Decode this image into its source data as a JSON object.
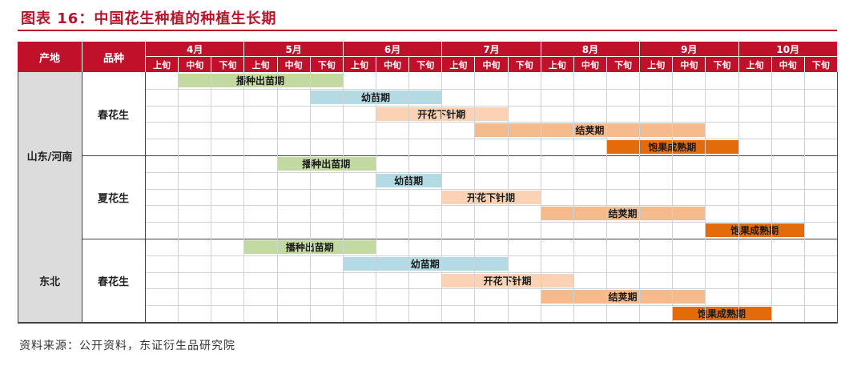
{
  "title": "图表 16：中国花生种植的种植生长期",
  "source": "资料来源：公开资料，东证衍生品研究院",
  "header": {
    "origin": "产地",
    "variety": "品种",
    "months": [
      "4月",
      "5月",
      "6月",
      "7月",
      "8月",
      "9月",
      "10月"
    ],
    "dekads": [
      "上旬",
      "中旬",
      "下旬"
    ]
  },
  "colors": {
    "header": "#c0102a",
    "title": "#b5142a",
    "region_cell": "#dcdcdc",
    "stage_sowing": "#c2d9a2",
    "stage_seedling": "#b4dbe4",
    "stage_flowering": "#fbd3b4",
    "stage_podding": "#f6bb8c",
    "stage_maturing": "#e36c0a"
  },
  "regions": [
    {
      "name": "山东/河南",
      "crops": [
        {
          "name": "春花生",
          "stages": [
            {
              "label": "播种出苗期",
              "color": "stage_sowing",
              "start": 1,
              "end": 6
            },
            {
              "label": "幼苗期",
              "color": "stage_seedling",
              "start": 5,
              "end": 9
            },
            {
              "label": "开花下针期",
              "color": "stage_flowering",
              "start": 7,
              "end": 11
            },
            {
              "label": "结荚期",
              "color": "stage_podding",
              "start": 10,
              "end": 17
            },
            {
              "label": "饱果成熟期",
              "color": "stage_maturing",
              "start": 14,
              "end": 18
            }
          ]
        },
        {
          "name": "夏花生",
          "stages": [
            {
              "label": "播种出苗期",
              "color": "stage_sowing",
              "start": 4,
              "end": 7
            },
            {
              "label": "幼苗期",
              "color": "stage_seedling",
              "start": 7,
              "end": 9
            },
            {
              "label": "开花下针期",
              "color": "stage_flowering",
              "start": 9,
              "end": 12
            },
            {
              "label": "结荚期",
              "color": "stage_podding",
              "start": 12,
              "end": 17
            },
            {
              "label": "饱果成熟期",
              "color": "stage_maturing",
              "start": 17,
              "end": 20
            }
          ]
        }
      ]
    },
    {
      "name": "东北",
      "crops": [
        {
          "name": "春花生",
          "stages": [
            {
              "label": "播种出苗期",
              "color": "stage_sowing",
              "start": 3,
              "end": 7
            },
            {
              "label": "幼苗期",
              "color": "stage_seedling",
              "start": 6,
              "end": 11
            },
            {
              "label": "开花下针期",
              "color": "stage_flowering",
              "start": 9,
              "end": 13
            },
            {
              "label": "结荚期",
              "color": "stage_podding",
              "start": 12,
              "end": 17
            },
            {
              "label": "饱果成熟期",
              "color": "stage_maturing",
              "start": 16,
              "end": 19
            }
          ]
        }
      ]
    }
  ]
}
